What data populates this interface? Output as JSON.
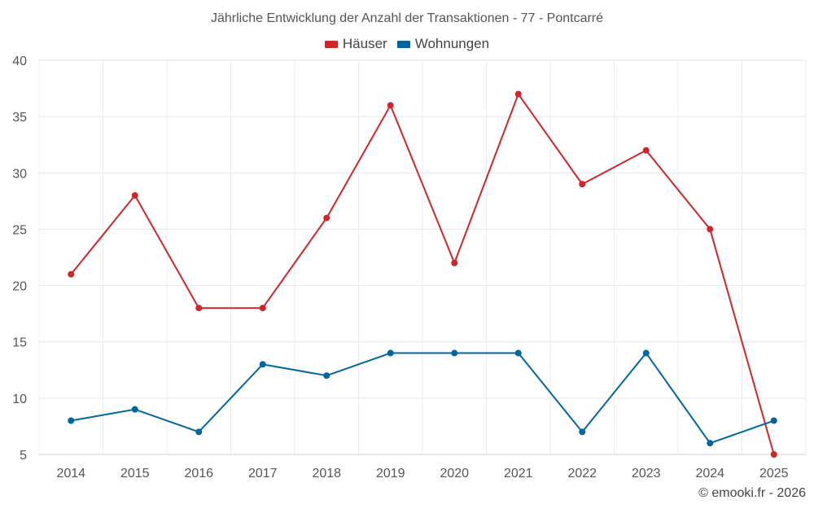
{
  "chart_data": {
    "type": "line",
    "title": "Jährliche Entwicklung der Anzahl der Transaktionen - 77 - Pontcarré",
    "categories": [
      "2014",
      "2015",
      "2016",
      "2017",
      "2018",
      "2019",
      "2020",
      "2021",
      "2022",
      "2023",
      "2024",
      "2025"
    ],
    "series": [
      {
        "name": "Häuser",
        "color": "#d0252b",
        "values": [
          21,
          28,
          18,
          18,
          26,
          36,
          22,
          37,
          29,
          32,
          25,
          5
        ]
      },
      {
        "name": "Wohnungen",
        "color": "#0066a0",
        "values": [
          8,
          9,
          7,
          13,
          12,
          14,
          14,
          14,
          7,
          14,
          6,
          8
        ]
      }
    ],
    "ylim": [
      5,
      40
    ],
    "yticks": [
      "5",
      "10",
      "15",
      "20",
      "25",
      "30",
      "35",
      "40"
    ],
    "legend": "top-center",
    "grid": true
  },
  "credit": "© emooki.fr - 2026"
}
